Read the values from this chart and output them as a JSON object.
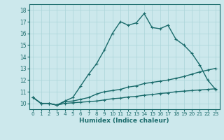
{
  "title": "",
  "xlabel": "Humidex (Indice chaleur)",
  "bg_color": "#cce8ec",
  "line_color": "#1a6b6b",
  "grid_color": "#aad4d8",
  "xlim": [
    -0.5,
    23.5
  ],
  "ylim": [
    9.5,
    18.5
  ],
  "xticks": [
    0,
    1,
    2,
    3,
    4,
    5,
    6,
    7,
    8,
    9,
    10,
    11,
    12,
    13,
    14,
    15,
    16,
    17,
    18,
    19,
    20,
    21,
    22,
    23
  ],
  "yticks": [
    10,
    11,
    12,
    13,
    14,
    15,
    16,
    17,
    18
  ],
  "line1_x": [
    0,
    1,
    2,
    3,
    4,
    5,
    6,
    7,
    8,
    9,
    10,
    11,
    12,
    13,
    14,
    15,
    16,
    17,
    18,
    19,
    20,
    21,
    22,
    23
  ],
  "line1_y": [
    10.5,
    10.0,
    10.0,
    9.85,
    10.0,
    10.05,
    10.1,
    10.15,
    10.2,
    10.3,
    10.4,
    10.45,
    10.55,
    10.6,
    10.7,
    10.75,
    10.85,
    10.9,
    11.0,
    11.05,
    11.1,
    11.15,
    11.2,
    11.25
  ],
  "line2_x": [
    0,
    1,
    2,
    3,
    4,
    5,
    6,
    7,
    8,
    9,
    10,
    11,
    12,
    13,
    14,
    15,
    16,
    17,
    18,
    19,
    20,
    21,
    22,
    23
  ],
  "line2_y": [
    10.5,
    10.0,
    10.0,
    9.85,
    10.15,
    10.2,
    10.35,
    10.5,
    10.8,
    11.0,
    11.1,
    11.2,
    11.4,
    11.5,
    11.7,
    11.8,
    11.9,
    12.0,
    12.15,
    12.3,
    12.5,
    12.7,
    12.85,
    13.0
  ],
  "line3_x": [
    0,
    1,
    2,
    3,
    4,
    5,
    6,
    7,
    8,
    9,
    10,
    11,
    12,
    13,
    14,
    15,
    16,
    17,
    18,
    19,
    20,
    21,
    22,
    23
  ],
  "line3_y": [
    10.5,
    10.0,
    10.0,
    9.85,
    10.2,
    10.5,
    11.5,
    12.5,
    13.4,
    14.6,
    16.0,
    17.0,
    16.7,
    16.9,
    17.7,
    16.5,
    16.4,
    16.7,
    15.5,
    15.0,
    14.3,
    13.3,
    12.0,
    11.2
  ],
  "marker": "+",
  "marker_size": 3.5,
  "line_width": 1.0
}
